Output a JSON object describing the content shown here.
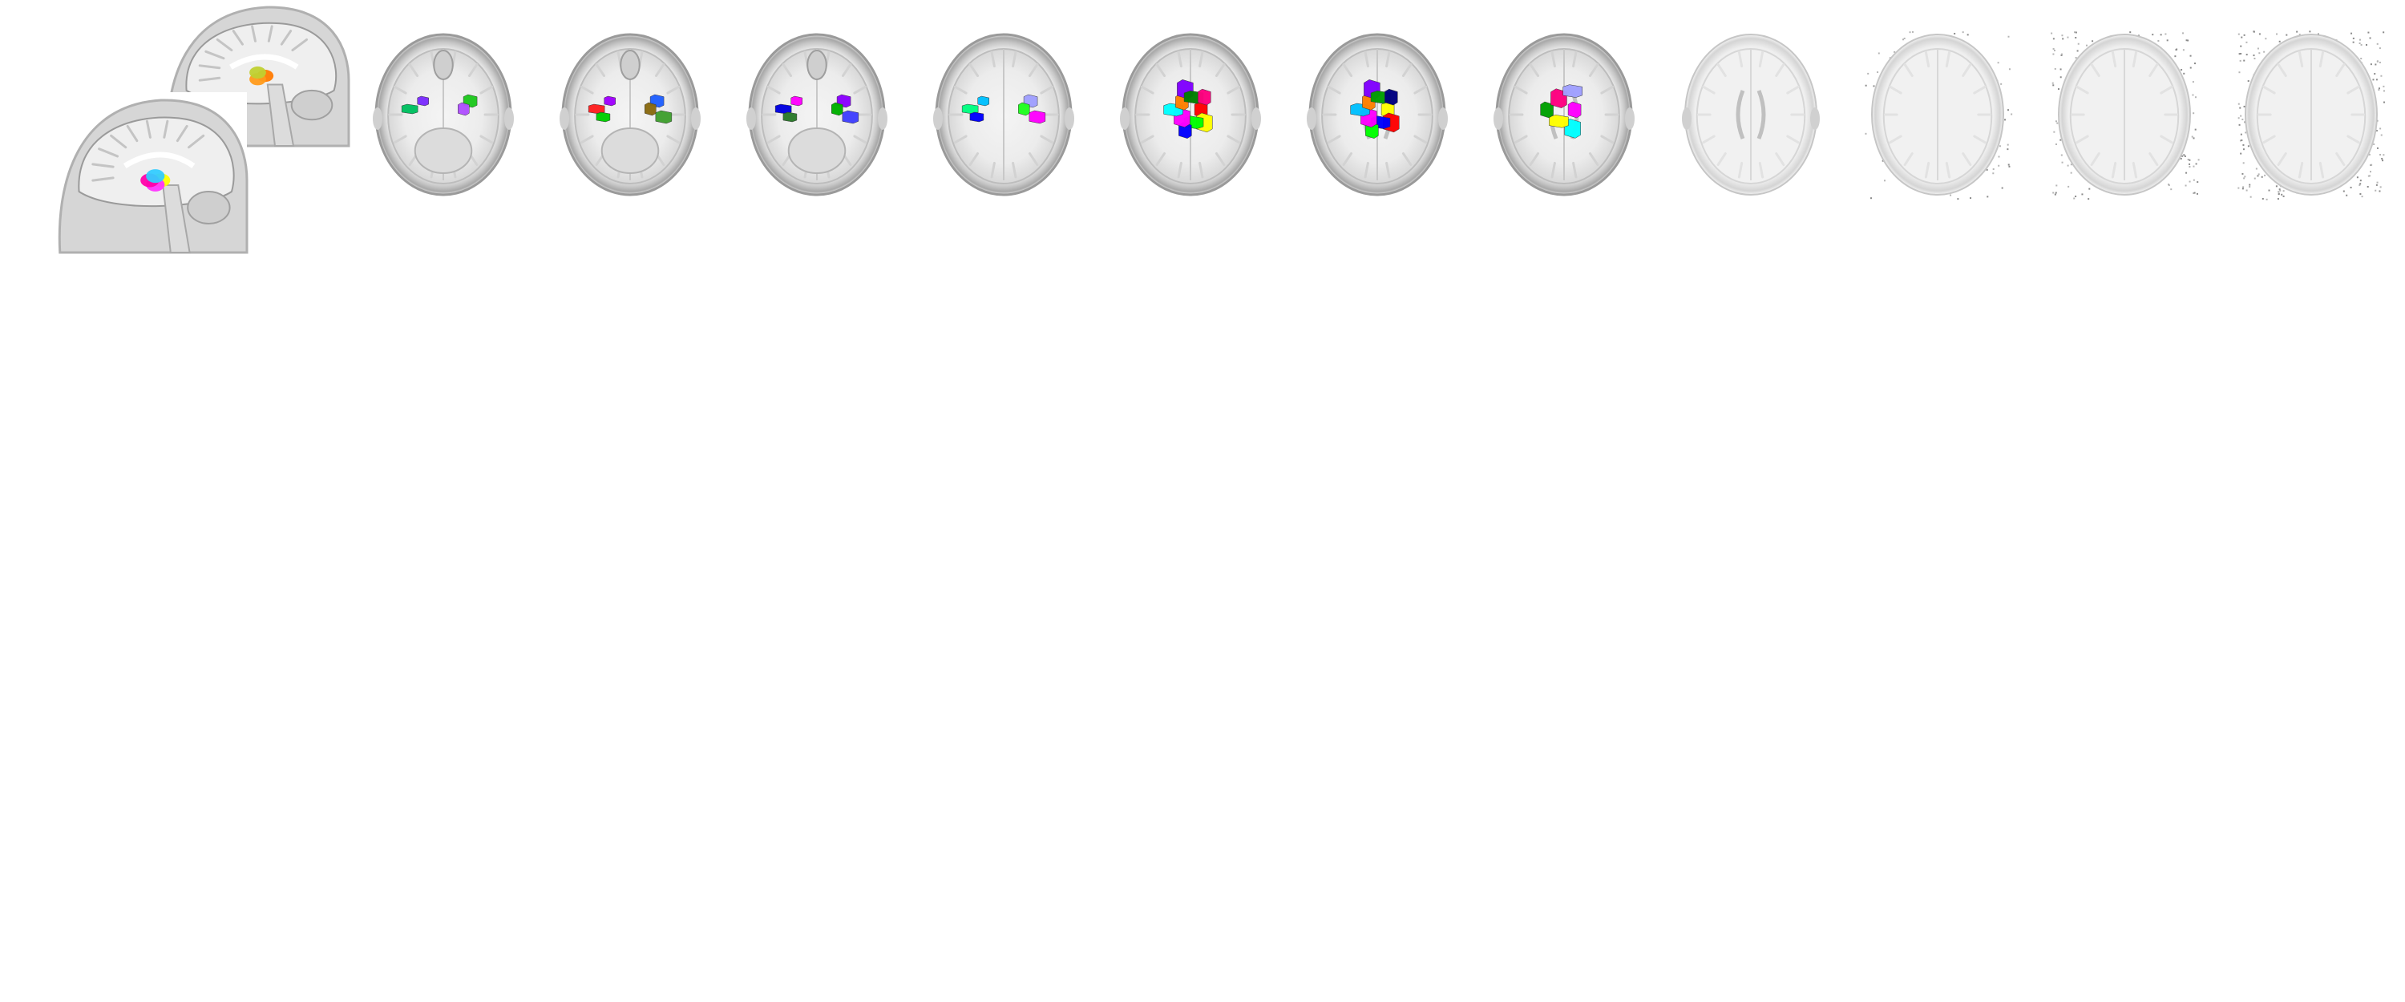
{
  "figure": {
    "background": "#ffffff",
    "sagittal_views": [
      {
        "name": "sagittal-view-back",
        "overlay_colors": [
          "#ff7a00",
          "#ff9a1a",
          "#c0d030"
        ]
      },
      {
        "name": "sagittal-view-front",
        "overlay_colors": [
          "#ffff00",
          "#ff33ff",
          "#ff00aa",
          "#33ccff"
        ]
      }
    ],
    "axial_slices": [
      {
        "index": 1,
        "template": "full",
        "overlay_colors": [
          "#7b2cff",
          "#1ec81e",
          "#00c060",
          "#b050ff"
        ]
      },
      {
        "index": 2,
        "template": "full",
        "overlay_colors": [
          "#a000ff",
          "#2060ff",
          "#ff2020",
          "#8a6a10",
          "#00d000",
          "#40a030"
        ]
      },
      {
        "index": 3,
        "template": "full",
        "overlay_colors": [
          "#ff00ff",
          "#8a00ff",
          "#0000e0",
          "#00b000",
          "#2a7a2a",
          "#4040ff"
        ]
      },
      {
        "index": 4,
        "template": "full",
        "overlay_colors": [
          "#00c0ff",
          "#a0a0ff",
          "#00ff80",
          "#20ff20",
          "#0000ff",
          "#ff00ff"
        ]
      },
      {
        "index": 5,
        "template": "full",
        "overlay_colors": [
          "#ff0000",
          "#ffff00",
          "#00ff00",
          "#0000ff",
          "#ff00ff",
          "#00ffff",
          "#ff8000",
          "#8000ff",
          "#008000",
          "#ff0080"
        ]
      },
      {
        "index": 6,
        "template": "full",
        "overlay_colors": [
          "#ffff00",
          "#ff0000",
          "#0000ff",
          "#00ff00",
          "#ff00ff",
          "#00c0ff",
          "#ff8000",
          "#8000ff",
          "#00a000",
          "#000080"
        ]
      },
      {
        "index": 7,
        "template": "full",
        "overlay_colors": [
          "#ff00ff",
          "#00ffff",
          "#ffff00",
          "#00a000",
          "#ff0080",
          "#a0a0ff"
        ]
      },
      {
        "index": 8,
        "template": "light",
        "overlay_colors": []
      },
      {
        "index": 9,
        "template": "light-noisy",
        "overlay_colors": []
      },
      {
        "index": 10,
        "template": "light-noisy",
        "overlay_colors": []
      },
      {
        "index": 11,
        "template": "light-noisy",
        "overlay_colors": []
      }
    ]
  }
}
